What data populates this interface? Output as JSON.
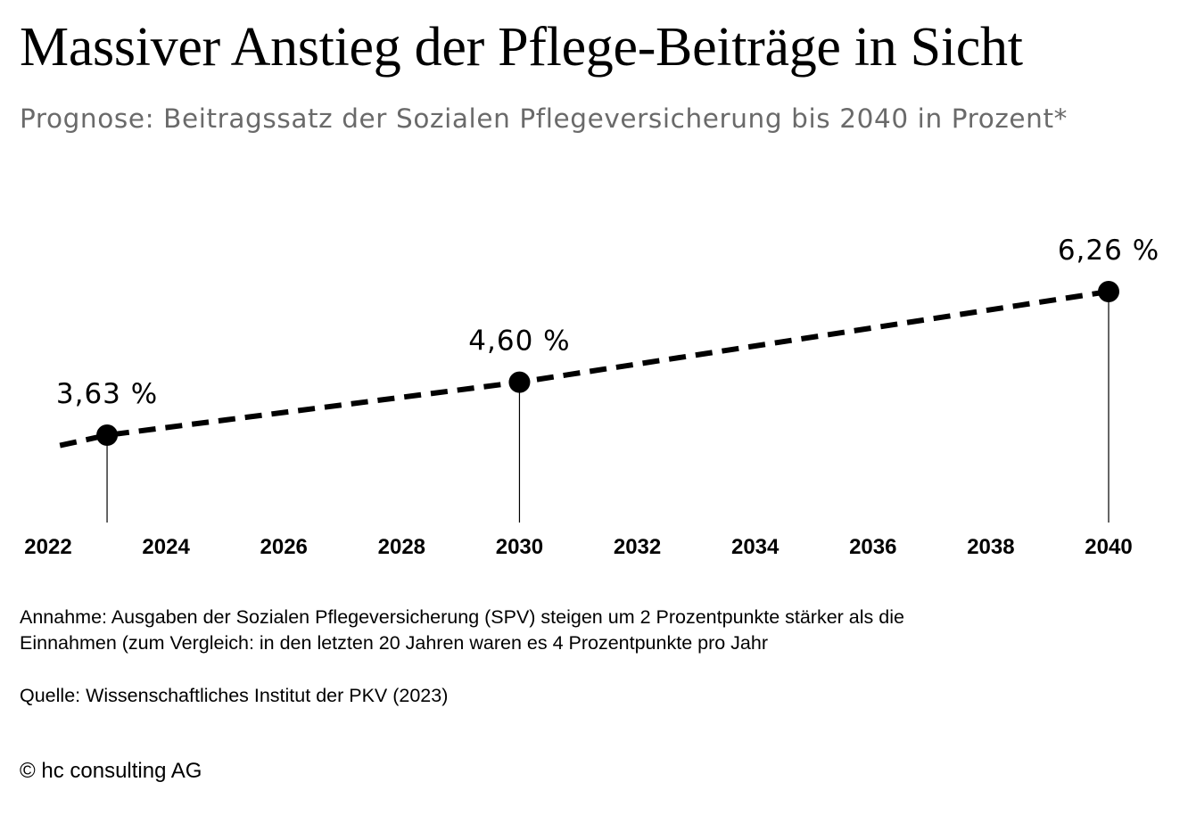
{
  "header": {
    "title": "Massiver Anstieg der Pflege-Beiträge in Sicht",
    "subtitle": "Prognose: Beitragssatz der Sozialen Pflegeversicherung bis 2040 in Prozent*"
  },
  "chart_data": {
    "type": "line",
    "title": "Massiver Anstieg der Pflege-Beiträge in Sicht",
    "subtitle": "Prognose: Beitragssatz der Sozialen Pflegeversicherung bis 2040 in Prozent*",
    "x_ticks": [
      "2022",
      "2024",
      "2026",
      "2028",
      "2030",
      "2032",
      "2034",
      "2036",
      "2038",
      "2040"
    ],
    "xlim": [
      2022,
      2040
    ],
    "line_style": "dashed",
    "grid": false,
    "series": [
      {
        "values": [
          {
            "x": 2022.2,
            "y": 3.44
          },
          {
            "x": 2023,
            "y": 3.63
          },
          {
            "x": 2030,
            "y": 4.6
          },
          {
            "x": 2040,
            "y": 6.26
          }
        ]
      }
    ],
    "highlighted_points": [
      {
        "x": 2023,
        "y": 3.63,
        "label": "3,63 %"
      },
      {
        "x": 2030,
        "y": 4.6,
        "label": "4,60 %"
      },
      {
        "x": 2040,
        "y": 6.26,
        "label": "6,26 %"
      }
    ]
  },
  "notes": {
    "assumption_line1": "Annahme: Ausgaben der Sozialen Pflegeversicherung (SPV) steigen um 2 Prozentpunkte stärker als die",
    "assumption_line2": "Einnahmen (zum Vergleich: in den letzten 20 Jahren waren es 4 Prozentpunkte pro Jahr",
    "source": "Quelle: Wissenschaftliches Institut der PKV (2023)",
    "copyright": "© hc consulting AG"
  }
}
